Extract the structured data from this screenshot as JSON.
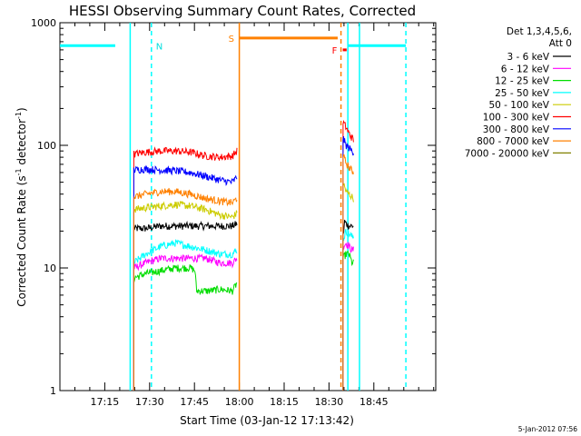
{
  "chart_data": {
    "type": "line",
    "title": "HESSI Observing Summary Count Rates, Corrected",
    "xlabel": "Start Time (03-Jan-12 17:13:42)",
    "ylabel_main": "Corrected Count Rate (s",
    "ylabel_sup1": "-1",
    "ylabel_mid": " detector",
    "ylabel_sup2": "-1",
    "ylabel_end": ")",
    "y_scale": "log",
    "ylim": [
      1,
      1000
    ],
    "xlim_minutes": [
      -13.7,
      112.0
    ],
    "x_ticks": [
      {
        "label": "17:15",
        "minutes": 1.3
      },
      {
        "label": "17:30",
        "minutes": 16.3
      },
      {
        "label": "17:45",
        "minutes": 31.3
      },
      {
        "label": "18:00",
        "minutes": 46.3
      },
      {
        "label": "18:15",
        "minutes": 61.3
      },
      {
        "label": "18:30",
        "minutes": 76.3
      },
      {
        "label": "18:45",
        "minutes": 91.3
      }
    ],
    "y_ticks": [
      {
        "label": "1",
        "value": 1
      },
      {
        "label": "10",
        "value": 10
      },
      {
        "label": "100",
        "value": 100
      },
      {
        "label": "1000",
        "value": 1000
      }
    ],
    "legend": {
      "placement": "right",
      "header_line1": "Det 1,3,4,5,6,",
      "header_line2": "Att 0",
      "entries": [
        {
          "label": "3 - 6 keV",
          "color": "#000000"
        },
        {
          "label": "6 - 12 keV",
          "color": "#ff00ff"
        },
        {
          "label": "12 - 25 keV",
          "color": "#00dd00"
        },
        {
          "label": "25 - 50 keV",
          "color": "#00ffff"
        },
        {
          "label": "50 - 100 keV",
          "color": "#cccc00"
        },
        {
          "label": "100 - 300 keV",
          "color": "#ff0000"
        },
        {
          "label": "300 - 800 keV",
          "color": "#0000ff"
        },
        {
          "label": "800 - 7000 keV",
          "color": "#ff8000"
        },
        {
          "label": "7000 - 20000 keV",
          "color": "#808000"
        }
      ]
    },
    "series": [
      {
        "name": "3 - 6 keV",
        "color": "#000000",
        "segments": [
          {
            "x": [
              11.0,
              15,
              20,
              25,
              30,
              35,
              40,
              44,
              45.5
            ],
            "y": [
              21,
              21,
              22,
              22,
              22,
              22,
              22,
              22,
              23
            ]
          },
          {
            "x": [
              81.0,
              81.5,
              82.0,
              83.0,
              84.0,
              84.5
            ],
            "y": [
              18,
              24,
              23,
              22,
              22,
              22
            ]
          }
        ]
      },
      {
        "name": "6 - 12 keV",
        "color": "#ff00ff",
        "segments": [
          {
            "x": [
              11.0,
              15,
              20,
              25,
              30,
              35,
              40,
              44,
              45.5
            ],
            "y": [
              10,
              11,
              12,
              12,
              12,
              12,
              11,
              11,
              12
            ]
          },
          {
            "x": [
              81.0,
              82.0,
              83.0,
              84.0,
              84.5
            ],
            "y": [
              15,
              16,
              15,
              14,
              14
            ]
          }
        ]
      },
      {
        "name": "12 - 25 keV",
        "color": "#00dd00",
        "segments": [
          {
            "x": [
              11.0,
              15,
              20,
              25,
              30,
              31.5,
              32,
              36,
              40,
              44,
              45.5
            ],
            "y": [
              8.3,
              9,
              9.5,
              10,
              10,
              9.5,
              6.5,
              6.5,
              6.7,
              6.5,
              7.5
            ]
          },
          {
            "x": [
              81.0,
              82.0,
              83.0,
              84.0,
              84.5
            ],
            "y": [
              12,
              13,
              13,
              11,
              11
            ]
          }
        ]
      },
      {
        "name": "25 - 50 keV",
        "color": "#00ffff",
        "segments": [
          {
            "x": [
              11.0,
              15,
              20,
              25,
              30,
              35,
              40,
              44,
              45.5
            ],
            "y": [
              11,
              13,
              15,
              16,
              15,
              14,
              13,
              13,
              14
            ]
          },
          {
            "x": [
              81.0,
              82.0,
              83.0,
              84.0,
              84.5
            ],
            "y": [
              17,
              20,
              19,
              18,
              18
            ]
          }
        ]
      },
      {
        "name": "50 - 100 keV",
        "color": "#cccc00",
        "segments": [
          {
            "x": [
              11.0,
              15,
              20,
              25,
              30,
              35,
              40,
              44,
              45.5
            ],
            "y": [
              30,
              31,
              32,
              33,
              32,
              30,
              27,
              26,
              28
            ]
          },
          {
            "x": [
              81.0,
              82.0,
              83.0,
              84.0,
              84.5
            ],
            "y": [
              50,
              42,
              40,
              38,
              37
            ]
          }
        ]
      },
      {
        "name": "100 - 300 keV",
        "color": "#ff0000",
        "segments": [
          {
            "x": [
              11.0,
              15,
              20,
              25,
              30,
              35,
              40,
              44,
              45.5
            ],
            "y": [
              85,
              88,
              90,
              90,
              88,
              82,
              80,
              82,
              90
            ]
          },
          {
            "x": [
              81.0,
              82.0,
              83.0,
              84.0,
              84.5
            ],
            "y": [
              155,
              140,
              125,
              115,
              110
            ]
          }
        ]
      },
      {
        "name": "300 - 800 keV",
        "color": "#0000ff",
        "segments": [
          {
            "x": [
              11.0,
              15,
              20,
              25,
              30,
              35,
              40,
              44,
              45.5
            ],
            "y": [
              63,
              64,
              63,
              62,
              60,
              56,
              52,
              50,
              55
            ]
          },
          {
            "x": [
              81.0,
              82.0,
              83.0,
              84.0,
              84.5
            ],
            "y": [
              115,
              100,
              95,
              90,
              88
            ]
          }
        ]
      },
      {
        "name": "800 - 7000 keV",
        "color": "#ff8000",
        "segments": [
          {
            "x": [
              11.0,
              15,
              20,
              25,
              30,
              35,
              40,
              44,
              45.5
            ],
            "y": [
              38,
              40,
              42,
              42,
              40,
              37,
              35,
              34,
              37
            ]
          },
          {
            "x": [
              81.0,
              82.0,
              83.0,
              84.0,
              84.5
            ],
            "y": [
              82,
              72,
              66,
              62,
              60
            ]
          }
        ]
      }
    ],
    "bars": [
      {
        "label": "",
        "color": "#00ffff",
        "y": 650,
        "x": [
          -13.7,
          4.8
        ]
      },
      {
        "label": "",
        "color": "#00ffff",
        "y": 650,
        "x": [
          82.6,
          102.0
        ]
      },
      {
        "label": "S",
        "color": "#ff8000",
        "y": 750,
        "x": [
          46.3,
          79.2
        ]
      },
      {
        "label": "F",
        "color": "#ff0000",
        "y": 600,
        "x": [
          80.9,
          82.2
        ]
      }
    ],
    "label_N": "N",
    "v_lines": [
      {
        "x": 9.8,
        "color": "#00ffff",
        "dashed": false
      },
      {
        "x": 16.9,
        "color": "#00ffff",
        "dashed": true
      },
      {
        "x": 46.3,
        "color": "#ff8000",
        "dashed": false
      },
      {
        "x": 80.3,
        "color": "#ff8000",
        "dashed": true
      },
      {
        "x": 82.6,
        "color": "#00ffff",
        "dashed": false
      },
      {
        "x": 86.5,
        "color": "#00ffff",
        "dashed": false
      },
      {
        "x": 102.0,
        "color": "#00ffff",
        "dashed": true
      }
    ]
  },
  "footer_date": "5-Jan-2012 07:56"
}
